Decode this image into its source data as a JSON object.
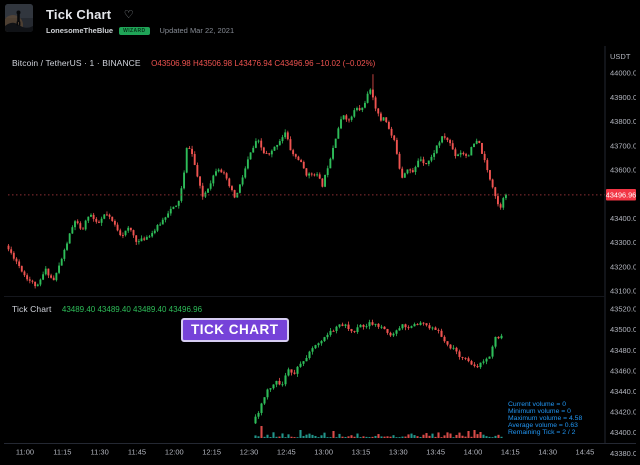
{
  "header": {
    "title": "Tick Chart",
    "heart_icon": "♡",
    "author": "LonesomeTheBlue",
    "badge": "WIZARD",
    "updated": "Updated Mar 22, 2021"
  },
  "colors": {
    "up": "#2ebd59",
    "down": "#ef5350",
    "vol_up": "#26a69a",
    "vol_down": "#ef5350",
    "axis_text": "#b2b5be",
    "legend_text": "#d1d4dc",
    "ohlc_red": "#ef5350",
    "stat_blue": "#2196f3",
    "price_label_bg": "#f23645",
    "price_line": "#8c2f35",
    "separator": "#242832",
    "pane_divider": "#15171d",
    "badge_purple": "#7643d9"
  },
  "time_axis": [
    "11:00",
    "11:15",
    "11:30",
    "11:45",
    "12:00",
    "12:15",
    "12:30",
    "12:45",
    "13:00",
    "13:15",
    "13:30",
    "13:45",
    "14:00",
    "14:15",
    "14:30",
    "14:45"
  ],
  "chart_data": [
    {
      "type": "candlestick",
      "title": "Bitcoin / TetherUS · 1 · BINANCE",
      "legend": {
        "title": "Bitcoin / TetherUS · 1 · BINANCE",
        "ohlc": "O43506.98 H43506.98 L43476.94 C43496.96 −10.02 (−0.02%)",
        "open": 43506.98,
        "high": 43506.98,
        "low": 43476.94,
        "close": 43496.96,
        "change": -10.02,
        "change_pct": -0.02
      },
      "price_axis": {
        "currency": "USDT",
        "ticks": [
          44000,
          43900,
          43800,
          43700,
          43600,
          43400,
          43300,
          43200,
          43100
        ],
        "ylim": [
          43096,
          44029
        ]
      },
      "current_price": 43496.96,
      "session_high": 44000,
      "session_low": 43110,
      "profile_keypoints": [
        [
          4,
          43290
        ],
        [
          14,
          43230
        ],
        [
          24,
          43160
        ],
        [
          36,
          43115
        ],
        [
          44,
          43190
        ],
        [
          52,
          43140
        ],
        [
          60,
          43230
        ],
        [
          68,
          43330
        ],
        [
          74,
          43395
        ],
        [
          80,
          43340
        ],
        [
          88,
          43425
        ],
        [
          96,
          43370
        ],
        [
          104,
          43420
        ],
        [
          112,
          43380
        ],
        [
          120,
          43330
        ],
        [
          128,
          43360
        ],
        [
          136,
          43300
        ],
        [
          144,
          43320
        ],
        [
          152,
          43345
        ],
        [
          160,
          43385
        ],
        [
          168,
          43435
        ],
        [
          176,
          43450
        ],
        [
          182,
          43560
        ],
        [
          186,
          43715
        ],
        [
          191,
          43660
        ],
        [
          196,
          43570
        ],
        [
          201,
          43485
        ],
        [
          208,
          43540
        ],
        [
          216,
          43615
        ],
        [
          222,
          43585
        ],
        [
          228,
          43530
        ],
        [
          234,
          43480
        ],
        [
          240,
          43555
        ],
        [
          248,
          43660
        ],
        [
          256,
          43725
        ],
        [
          262,
          43670
        ],
        [
          268,
          43660
        ],
        [
          276,
          43710
        ],
        [
          284,
          43755
        ],
        [
          290,
          43670
        ],
        [
          298,
          43640
        ],
        [
          306,
          43575
        ],
        [
          314,
          43590
        ],
        [
          321,
          43535
        ],
        [
          328,
          43640
        ],
        [
          336,
          43765
        ],
        [
          342,
          43830
        ],
        [
          348,
          43800
        ],
        [
          354,
          43855
        ],
        [
          360,
          43845
        ],
        [
          366,
          43910
        ],
        [
          370,
          43930
        ],
        [
          374,
          43860
        ],
        [
          379,
          43800
        ],
        [
          383,
          43825
        ],
        [
          388,
          43760
        ],
        [
          394,
          43705
        ],
        [
          400,
          43565
        ],
        [
          406,
          43610
        ],
        [
          412,
          43585
        ],
        [
          418,
          43655
        ],
        [
          424,
          43625
        ],
        [
          430,
          43650
        ],
        [
          436,
          43705
        ],
        [
          442,
          43740
        ],
        [
          448,
          43715
        ],
        [
          454,
          43660
        ],
        [
          460,
          43675
        ],
        [
          466,
          43655
        ],
        [
          472,
          43705
        ],
        [
          477,
          43720
        ],
        [
          482,
          43650
        ],
        [
          487,
          43580
        ],
        [
          492,
          43525
        ],
        [
          496,
          43460
        ],
        [
          499,
          43445
        ],
        [
          502,
          43495
        ]
      ],
      "wick_overrides": [
        {
          "x": 369,
          "high": 43995
        }
      ],
      "gen": {
        "x0": 4.5,
        "step": 2.66,
        "count": 188,
        "bw": 1.9,
        "noise": 16,
        "wick": 13,
        "seed": 11,
        "final_close": 43496.96
      }
    },
    {
      "type": "candlestick+volume",
      "title": "Tick Chart",
      "legend": {
        "title": "Tick Chart",
        "values": "43489.40 43489.40 43489.40 43496.96"
      },
      "overlay_label": "TICK CHART",
      "price_axis": {
        "ticks": [
          43520,
          43500,
          43480,
          43460,
          43440,
          43420,
          43400,
          43380
        ],
        "ylim": [
          43385,
          43530
        ]
      },
      "annotations": [
        "Current volume = 0",
        "Minimum volume = 0",
        "Maximum volume = 4.58",
        "Average volume = 0.63",
        "Remaining Tick = 2 / 2"
      ],
      "profile_keypoints": [
        [
          251,
          43408
        ],
        [
          256,
          43418
        ],
        [
          261,
          43428
        ],
        [
          266,
          43440
        ],
        [
          271,
          43446
        ],
        [
          276,
          43452
        ],
        [
          280,
          43444
        ],
        [
          284,
          43455
        ],
        [
          288,
          43462
        ],
        [
          292,
          43455
        ],
        [
          296,
          43462
        ],
        [
          301,
          43470
        ],
        [
          306,
          43474
        ],
        [
          311,
          43480
        ],
        [
          316,
          43487
        ],
        [
          322,
          43492
        ],
        [
          328,
          43497
        ],
        [
          334,
          43500
        ],
        [
          340,
          43505
        ],
        [
          346,
          43504
        ],
        [
          350,
          43497
        ],
        [
          354,
          43500
        ],
        [
          358,
          43503
        ],
        [
          364,
          43505
        ],
        [
          370,
          43506
        ],
        [
          376,
          43504
        ],
        [
          382,
          43502
        ],
        [
          386,
          43497
        ],
        [
          390,
          43494
        ],
        [
          394,
          43499
        ],
        [
          400,
          43503
        ],
        [
          406,
          43504
        ],
        [
          412,
          43503
        ],
        [
          418,
          43505
        ],
        [
          424,
          43504
        ],
        [
          430,
          43503
        ],
        [
          434,
          43501
        ],
        [
          438,
          43497
        ],
        [
          442,
          43490
        ],
        [
          446,
          43486
        ],
        [
          451,
          43482
        ],
        [
          456,
          43477
        ],
        [
          461,
          43473
        ],
        [
          466,
          43470
        ],
        [
          471,
          43466
        ],
        [
          476,
          43464
        ],
        [
          481,
          43470
        ],
        [
          486,
          43472
        ],
        [
          490,
          43477
        ],
        [
          494,
          43492
        ]
      ],
      "vol_spikes": [
        {
          "x": 343,
          "h": 20
        },
        {
          "x": 258,
          "h": 12,
          "dir": "down"
        },
        {
          "x": 296,
          "h": 8
        },
        {
          "x": 329,
          "h": 7
        },
        {
          "x": 464,
          "h": 7,
          "dir": "down"
        },
        {
          "x": 471,
          "h": 8,
          "dir": "down"
        },
        {
          "x": 476,
          "h": 6,
          "dir": "down"
        }
      ],
      "gen": {
        "x0": 251.5,
        "step": 3.0,
        "count": 83,
        "bw": 2.1,
        "noise": 4,
        "wick": 3,
        "seed": 5,
        "final_close": 43494,
        "volMax": 5
      }
    }
  ]
}
